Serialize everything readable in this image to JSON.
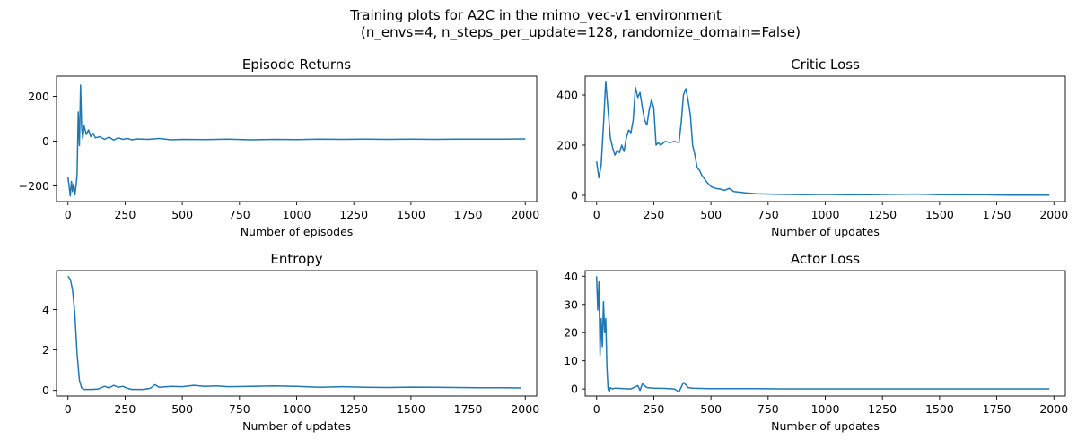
{
  "suptitle": {
    "line1": "Training plots for A2C in the mimo_vec-v1 environment",
    "line2": "(n_envs=4, n_steps_per_update=128, randomize_domain=False)"
  },
  "colors": {
    "line": "#1f77b4",
    "axes": "#000000",
    "background": "#ffffff"
  },
  "chart_data": [
    {
      "type": "line",
      "title": "Episode Returns",
      "xlabel": "Number of episodes",
      "ylabel": "",
      "xlim": [
        -50,
        2050
      ],
      "ylim": [
        -270,
        290
      ],
      "xticks": [
        0,
        250,
        500,
        750,
        1000,
        1250,
        1500,
        1750,
        2000
      ],
      "yticks": [
        -200,
        0,
        200
      ],
      "series": [
        {
          "x": [
            0,
            5,
            10,
            15,
            20,
            25,
            30,
            35,
            40,
            45,
            50,
            55,
            60,
            65,
            70,
            80,
            90,
            100,
            110,
            120,
            140,
            160,
            180,
            200,
            220,
            240,
            260,
            280,
            300,
            350,
            400,
            450,
            500,
            600,
            700,
            800,
            900,
            1000,
            1100,
            1200,
            1300,
            1400,
            1500,
            1600,
            1700,
            1800,
            1900,
            2000
          ],
          "y": [
            -160,
            -200,
            -245,
            -180,
            -225,
            -190,
            -240,
            -200,
            -150,
            130,
            -20,
            250,
            60,
            10,
            70,
            30,
            50,
            20,
            35,
            15,
            20,
            8,
            18,
            5,
            15,
            8,
            12,
            6,
            10,
            8,
            12,
            6,
            8,
            7,
            9,
            6,
            8,
            7,
            9,
            8,
            9,
            8,
            9,
            8,
            9,
            9,
            9,
            10
          ]
        }
      ]
    },
    {
      "type": "line",
      "title": "Critic Loss",
      "xlabel": "Number of updates",
      "ylabel": "",
      "xlim": [
        -50,
        2050
      ],
      "ylim": [
        -25,
        475
      ],
      "xticks": [
        0,
        250,
        500,
        750,
        1000,
        1250,
        1500,
        1750,
        2000
      ],
      "yticks": [
        0,
        200,
        400
      ],
      "series": [
        {
          "x": [
            0,
            10,
            20,
            30,
            40,
            50,
            60,
            70,
            80,
            90,
            100,
            110,
            120,
            130,
            140,
            150,
            160,
            170,
            180,
            190,
            200,
            210,
            220,
            230,
            240,
            250,
            260,
            270,
            280,
            300,
            320,
            340,
            360,
            370,
            380,
            390,
            400,
            410,
            420,
            430,
            440,
            450,
            460,
            480,
            500,
            520,
            540,
            560,
            580,
            600,
            650,
            700,
            800,
            900,
            1000,
            1100,
            1200,
            1300,
            1400,
            1500,
            1600,
            1700,
            1800,
            1900,
            1980
          ],
          "y": [
            135,
            70,
            120,
            280,
            455,
            340,
            230,
            190,
            160,
            180,
            170,
            200,
            175,
            230,
            260,
            250,
            300,
            430,
            390,
            410,
            350,
            300,
            280,
            340,
            380,
            350,
            200,
            210,
            200,
            215,
            210,
            215,
            210,
            290,
            400,
            425,
            380,
            320,
            200,
            160,
            110,
            100,
            80,
            55,
            35,
            28,
            25,
            20,
            28,
            15,
            10,
            6,
            4,
            3,
            4,
            2,
            3,
            4,
            5,
            3,
            2,
            2,
            1,
            1,
            1
          ]
        }
      ]
    },
    {
      "type": "line",
      "title": "Entropy",
      "xlabel": "Number of updates",
      "ylabel": "",
      "xlim": [
        -50,
        2050
      ],
      "ylim": [
        -0.28,
        5.93
      ],
      "xticks": [
        0,
        250,
        500,
        750,
        1000,
        1250,
        1500,
        1750,
        2000
      ],
      "yticks": [
        0,
        2,
        4
      ],
      "series": [
        {
          "x": [
            0,
            10,
            20,
            30,
            40,
            50,
            60,
            70,
            80,
            100,
            130,
            160,
            180,
            200,
            220,
            240,
            260,
            280,
            300,
            330,
            360,
            380,
            400,
            450,
            500,
            550,
            600,
            650,
            700,
            800,
            900,
            1000,
            1100,
            1200,
            1300,
            1400,
            1500,
            1600,
            1700,
            1800,
            1900,
            1980
          ],
          "y": [
            5.65,
            5.5,
            5.0,
            3.8,
            1.8,
            0.5,
            0.12,
            0.05,
            0.05,
            0.05,
            0.06,
            0.2,
            0.12,
            0.25,
            0.15,
            0.2,
            0.1,
            0.05,
            0.05,
            0.05,
            0.1,
            0.28,
            0.15,
            0.2,
            0.18,
            0.25,
            0.2,
            0.22,
            0.18,
            0.2,
            0.22,
            0.2,
            0.15,
            0.18,
            0.15,
            0.14,
            0.16,
            0.15,
            0.14,
            0.13,
            0.13,
            0.12
          ]
        }
      ]
    },
    {
      "type": "line",
      "title": "Actor Loss",
      "xlabel": "Number of updates",
      "ylabel": "",
      "xlim": [
        -50,
        2050
      ],
      "ylim": [
        -2.5,
        42
      ],
      "xticks": [
        0,
        250,
        500,
        750,
        1000,
        1250,
        1500,
        1750,
        2000
      ],
      "yticks": [
        0,
        10,
        20,
        30,
        40
      ],
      "series": [
        {
          "x": [
            0,
            5,
            10,
            15,
            20,
            25,
            30,
            35,
            40,
            45,
            50,
            55,
            60,
            70,
            80,
            100,
            150,
            180,
            190,
            200,
            220,
            250,
            300,
            340,
            360,
            380,
            390,
            400,
            420,
            450,
            500,
            600,
            700,
            800,
            900,
            1000,
            1200,
            1400,
            1600,
            1800,
            1980
          ],
          "y": [
            40,
            28,
            38,
            12,
            25,
            15,
            31,
            20,
            25,
            8,
            0,
            -1,
            0.5,
            0,
            0.3,
            0.2,
            0,
            1.2,
            -0.5,
            1.8,
            0.5,
            0.3,
            0.2,
            0,
            -1,
            2.3,
            1.5,
            0.5,
            0.3,
            0.2,
            0.1,
            0.1,
            0.1,
            0.05,
            0.05,
            0.05,
            0.05,
            0.05,
            0.05,
            0.05,
            0.05
          ]
        }
      ]
    }
  ]
}
